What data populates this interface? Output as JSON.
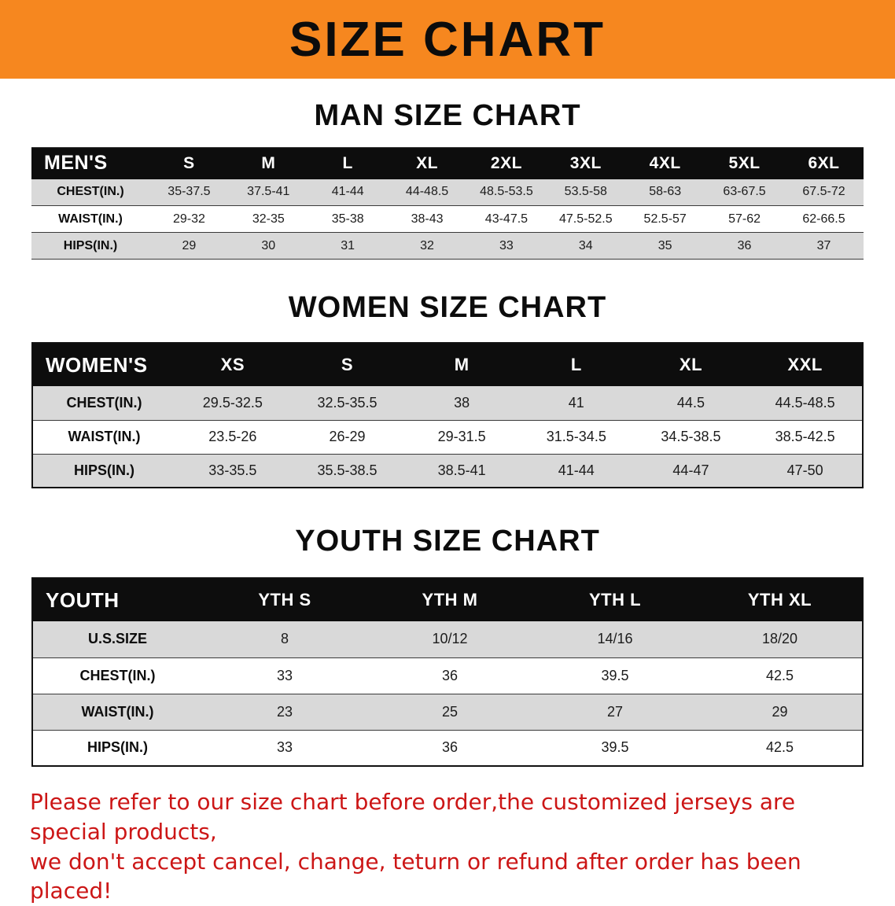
{
  "banner": {
    "title": "SIZE CHART",
    "background_color": "#f6871f"
  },
  "sections": [
    {
      "heading": "MAN SIZE CHART",
      "header_label": "MEN'S",
      "columns": [
        "S",
        "M",
        "L",
        "XL",
        "2XL",
        "3XL",
        "4XL",
        "5XL",
        "6XL"
      ],
      "rows": [
        {
          "label": "CHEST(IN.)",
          "values": [
            "35-37.5",
            "37.5-41",
            "41-44",
            "44-48.5",
            "48.5-53.5",
            "53.5-58",
            "58-63",
            "63-67.5",
            "67.5-72"
          ]
        },
        {
          "label": "WAIST(IN.)",
          "values": [
            "29-32",
            "32-35",
            "35-38",
            "38-43",
            "43-47.5",
            "47.5-52.5",
            "52.5-57",
            "57-62",
            "62-66.5"
          ]
        },
        {
          "label": "HIPS(IN.)",
          "values": [
            "29",
            "30",
            "31",
            "32",
            "33",
            "34",
            "35",
            "36",
            "37"
          ]
        }
      ]
    },
    {
      "heading": "WOMEN SIZE CHART",
      "header_label": "WOMEN'S",
      "columns": [
        "XS",
        "S",
        "M",
        "L",
        "XL",
        "XXL"
      ],
      "rows": [
        {
          "label": "CHEST(IN.)",
          "values": [
            "29.5-32.5",
            "32.5-35.5",
            "38",
            "41",
            "44.5",
            "44.5-48.5"
          ]
        },
        {
          "label": "WAIST(IN.)",
          "values": [
            "23.5-26",
            "26-29",
            "29-31.5",
            "31.5-34.5",
            "34.5-38.5",
            "38.5-42.5"
          ]
        },
        {
          "label": "HIPS(IN.)",
          "values": [
            "33-35.5",
            "35.5-38.5",
            "38.5-41",
            "41-44",
            "44-47",
            "47-50"
          ]
        }
      ]
    },
    {
      "heading": "YOUTH SIZE CHART",
      "header_label": "YOUTH",
      "columns": [
        "YTH S",
        "YTH M",
        "YTH L",
        "YTH XL"
      ],
      "rows": [
        {
          "label": "U.S.SIZE",
          "values": [
            "8",
            "10/12",
            "14/16",
            "18/20"
          ]
        },
        {
          "label": "CHEST(IN.)",
          "values": [
            "33",
            "36",
            "39.5",
            "42.5"
          ]
        },
        {
          "label": "WAIST(IN.)",
          "values": [
            "23",
            "25",
            "27",
            "29"
          ]
        },
        {
          "label": "HIPS(IN.)",
          "values": [
            "33",
            "36",
            "39.5",
            "42.5"
          ]
        }
      ]
    }
  ],
  "footer": {
    "text_color": "#cc1616",
    "lines": [
      "Please refer to our size chart before order,the customized jerseys are special products,",
      "we don't accept cancel, change, teturn or refund after order has been placed!"
    ]
  }
}
